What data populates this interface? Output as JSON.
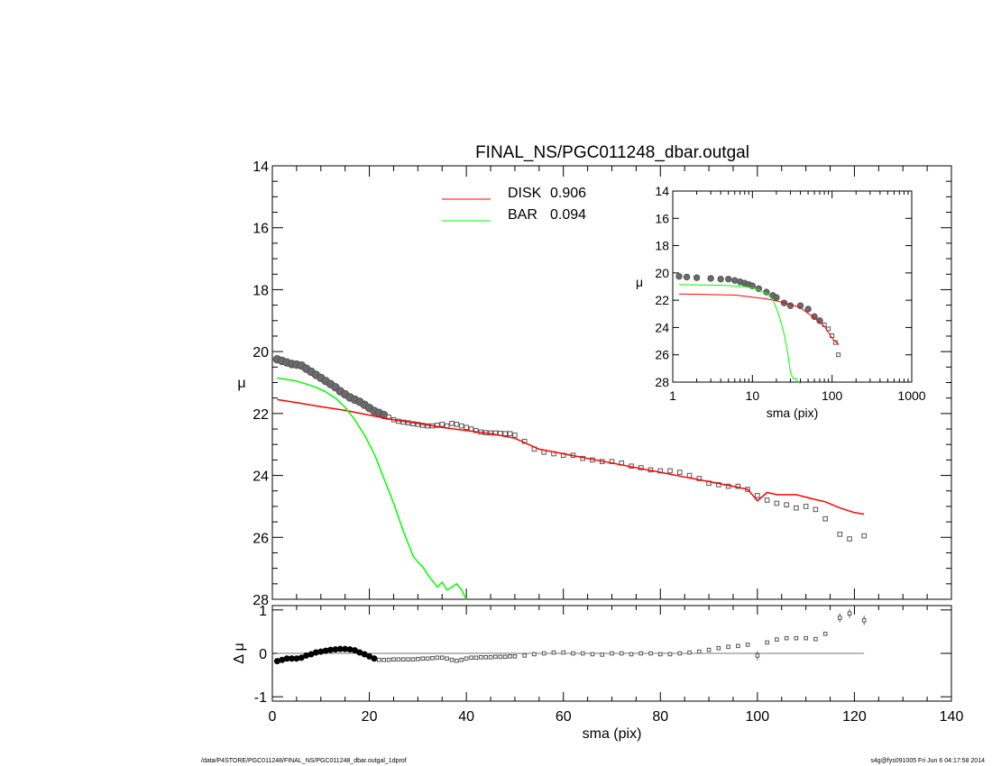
{
  "footer": {
    "path": "/data/P4STORE/PGC011248/FINAL_NS/PGC011248_dbar.outgal_1dprof",
    "stamp": "s4g@fys091005  Fri Jun  6 04:17:58 2014"
  },
  "chart_data": [
    {
      "panel": "main",
      "type": "line",
      "title": "FINAL_NS/PGC011248_dbar.outgal",
      "xlabel": "",
      "ylabel": "μ",
      "xlim": [
        0,
        140
      ],
      "ylim": [
        28,
        14
      ],
      "xticks": [
        0,
        20,
        40,
        60,
        80,
        100,
        120,
        140
      ],
      "yticks": [
        14,
        16,
        18,
        20,
        22,
        24,
        26,
        28
      ],
      "legend_position": "top-center",
      "legend": [
        {
          "label": "DISK",
          "value": "0.906",
          "color": "#ff0000"
        },
        {
          "label": "BAR",
          "value": "0.094",
          "color": "#00ff00"
        }
      ],
      "data": {
        "x": [
          1,
          2,
          3,
          4,
          5,
          6,
          7,
          8,
          9,
          10,
          11,
          12,
          13,
          14,
          15,
          16,
          17,
          18,
          19,
          20,
          21,
          22,
          23,
          24,
          25,
          26,
          27,
          28,
          29,
          30,
          31,
          32,
          33,
          34,
          35,
          36,
          37,
          38,
          39,
          40,
          41,
          42,
          43,
          44,
          45,
          46,
          47,
          48,
          49,
          50,
          52,
          54,
          56,
          58,
          60,
          62,
          64,
          66,
          68,
          70,
          72,
          74,
          76,
          78,
          80,
          82,
          84,
          86,
          88,
          90,
          92,
          94,
          96,
          98,
          100,
          102,
          104,
          106,
          108,
          110,
          112,
          114,
          117,
          119,
          122
        ],
        "y": [
          20.25,
          20.3,
          20.35,
          20.4,
          20.42,
          20.45,
          20.55,
          20.65,
          20.75,
          20.85,
          20.95,
          21.05,
          21.15,
          21.28,
          21.38,
          21.48,
          21.55,
          21.62,
          21.72,
          21.82,
          21.92,
          21.98,
          22.05,
          22.12,
          22.2,
          22.25,
          22.28,
          22.3,
          22.33,
          22.35,
          22.38,
          22.4,
          22.4,
          22.38,
          22.35,
          22.4,
          22.32,
          22.35,
          22.4,
          22.45,
          22.5,
          22.55,
          22.6,
          22.62,
          22.63,
          22.63,
          22.64,
          22.65,
          22.65,
          22.7,
          22.9,
          23.15,
          23.25,
          23.3,
          23.35,
          23.35,
          23.45,
          23.5,
          23.55,
          23.55,
          23.6,
          23.7,
          23.75,
          23.82,
          23.85,
          23.85,
          23.9,
          24.0,
          24.1,
          24.25,
          24.3,
          24.35,
          24.35,
          24.45,
          24.65,
          24.8,
          24.9,
          24.95,
          25.05,
          25.0,
          25.1,
          25.4,
          25.9,
          26.05,
          25.95
        ]
      },
      "series": [
        {
          "name": "DISK",
          "color": "#ff0000",
          "x": [
            1,
            5,
            10,
            15,
            20,
            25,
            30,
            35,
            40,
            45,
            50,
            55,
            60,
            65,
            70,
            75,
            80,
            85,
            90,
            95,
            98,
            100,
            102,
            104,
            108,
            112,
            114,
            117,
            120,
            122
          ],
          "y": [
            21.55,
            21.65,
            21.78,
            21.9,
            22.05,
            22.2,
            22.32,
            22.45,
            22.55,
            22.65,
            22.8,
            23.15,
            23.3,
            23.45,
            23.6,
            23.75,
            23.9,
            24.05,
            24.2,
            24.35,
            24.45,
            24.82,
            24.55,
            24.62,
            24.62,
            24.78,
            24.85,
            25.05,
            25.2,
            25.25
          ]
        },
        {
          "name": "BAR",
          "color": "#00ff00",
          "x": [
            1,
            3,
            5,
            7,
            9,
            11,
            13,
            15,
            17,
            19,
            21,
            23,
            25,
            27,
            29,
            30,
            31,
            32,
            33,
            34,
            35,
            36,
            37,
            38,
            39,
            40
          ],
          "y": [
            20.85,
            20.9,
            20.95,
            21.05,
            21.15,
            21.3,
            21.5,
            21.8,
            22.2,
            22.7,
            23.3,
            24.1,
            24.9,
            25.8,
            26.6,
            26.8,
            26.95,
            27.2,
            27.4,
            27.6,
            27.45,
            27.7,
            27.6,
            27.5,
            27.7,
            28.0
          ]
        }
      ]
    },
    {
      "panel": "inset",
      "type": "line",
      "xlabel": "sma (pix)",
      "ylabel": "μ",
      "x_scale": "log",
      "xlim": [
        1,
        1000
      ],
      "ylim": [
        28,
        14
      ],
      "xtick_labels": [
        "1",
        "10",
        "100",
        "1000"
      ],
      "yticks": [
        14,
        16,
        18,
        20,
        22,
        24,
        26,
        28
      ],
      "data": {
        "x": [
          1.2,
          1.5,
          2,
          3,
          4,
          5,
          6,
          7,
          8,
          9,
          10,
          12,
          15,
          18,
          20,
          25,
          30,
          40,
          50,
          60,
          70,
          80,
          90,
          100,
          110,
          120
        ],
        "y": [
          20.25,
          20.3,
          20.35,
          20.4,
          20.45,
          20.45,
          20.55,
          20.65,
          20.75,
          20.85,
          20.95,
          21.15,
          21.4,
          21.65,
          21.8,
          22.2,
          22.4,
          22.4,
          22.65,
          23.2,
          23.5,
          23.8,
          24.1,
          24.6,
          25.1,
          26.0
        ]
      },
      "series": [
        {
          "name": "DISK",
          "color": "#ff0000",
          "x": [
            1.2,
            2,
            4,
            6,
            8,
            10,
            15,
            20,
            30,
            40,
            60,
            80,
            100,
            122
          ],
          "y": [
            21.55,
            21.56,
            21.6,
            21.62,
            21.7,
            21.78,
            21.9,
            22.05,
            22.3,
            22.55,
            23.3,
            23.9,
            24.8,
            25.25
          ]
        },
        {
          "name": "BAR",
          "color": "#00ff00",
          "x": [
            1.2,
            2,
            4,
            6,
            8,
            10,
            12,
            15,
            18,
            20,
            22,
            25,
            28,
            30,
            33,
            35,
            38,
            40
          ],
          "y": [
            20.85,
            20.88,
            20.9,
            20.95,
            21.0,
            21.1,
            21.25,
            21.5,
            21.95,
            22.6,
            23.3,
            24.5,
            26.0,
            27.3,
            27.8,
            27.7,
            28.0,
            28.1
          ]
        }
      ]
    },
    {
      "panel": "residual",
      "type": "scatter",
      "xlabel": "sma (pix)",
      "ylabel": "Δ μ",
      "xlim": [
        0,
        140
      ],
      "ylim": [
        -1.1,
        1.1
      ],
      "xticks": [
        0,
        20,
        40,
        60,
        80,
        100,
        120,
        140
      ],
      "yticks": [
        -1,
        0,
        1
      ],
      "reference_line": 0,
      "x": [
        1,
        2,
        3,
        4,
        5,
        6,
        7,
        8,
        9,
        10,
        11,
        12,
        13,
        14,
        15,
        16,
        17,
        18,
        19,
        20,
        21,
        22,
        23,
        24,
        25,
        26,
        27,
        28,
        29,
        30,
        31,
        32,
        33,
        34,
        35,
        36,
        37,
        38,
        39,
        40,
        41,
        42,
        43,
        44,
        45,
        46,
        47,
        48,
        49,
        50,
        52,
        54,
        56,
        58,
        60,
        62,
        64,
        66,
        68,
        70,
        72,
        74,
        76,
        78,
        80,
        82,
        84,
        86,
        88,
        90,
        92,
        94,
        96,
        98,
        100,
        102,
        104,
        106,
        108,
        110,
        112,
        114,
        117,
        119,
        122
      ],
      "y": [
        -0.18,
        -0.15,
        -0.12,
        -0.12,
        -0.12,
        -0.1,
        -0.05,
        -0.02,
        0.02,
        0.04,
        0.06,
        0.08,
        0.09,
        0.1,
        0.1,
        0.09,
        0.07,
        0.02,
        -0.02,
        -0.07,
        -0.12,
        -0.15,
        -0.15,
        -0.15,
        -0.14,
        -0.14,
        -0.14,
        -0.14,
        -0.14,
        -0.13,
        -0.12,
        -0.12,
        -0.11,
        -0.1,
        -0.1,
        -0.12,
        -0.15,
        -0.17,
        -0.15,
        -0.12,
        -0.1,
        -0.1,
        -0.09,
        -0.09,
        -0.09,
        -0.08,
        -0.08,
        -0.08,
        -0.07,
        -0.07,
        -0.05,
        -0.02,
        0.0,
        0.02,
        0.02,
        0.0,
        0.0,
        -0.02,
        -0.03,
        0.0,
        0.0,
        -0.02,
        0.0,
        0.0,
        -0.02,
        -0.02,
        0.0,
        0.02,
        0.04,
        0.08,
        0.12,
        0.15,
        0.17,
        0.2,
        -0.05,
        0.25,
        0.32,
        0.35,
        0.35,
        0.35,
        0.33,
        0.45,
        0.82,
        0.92,
        0.76
      ]
    }
  ]
}
